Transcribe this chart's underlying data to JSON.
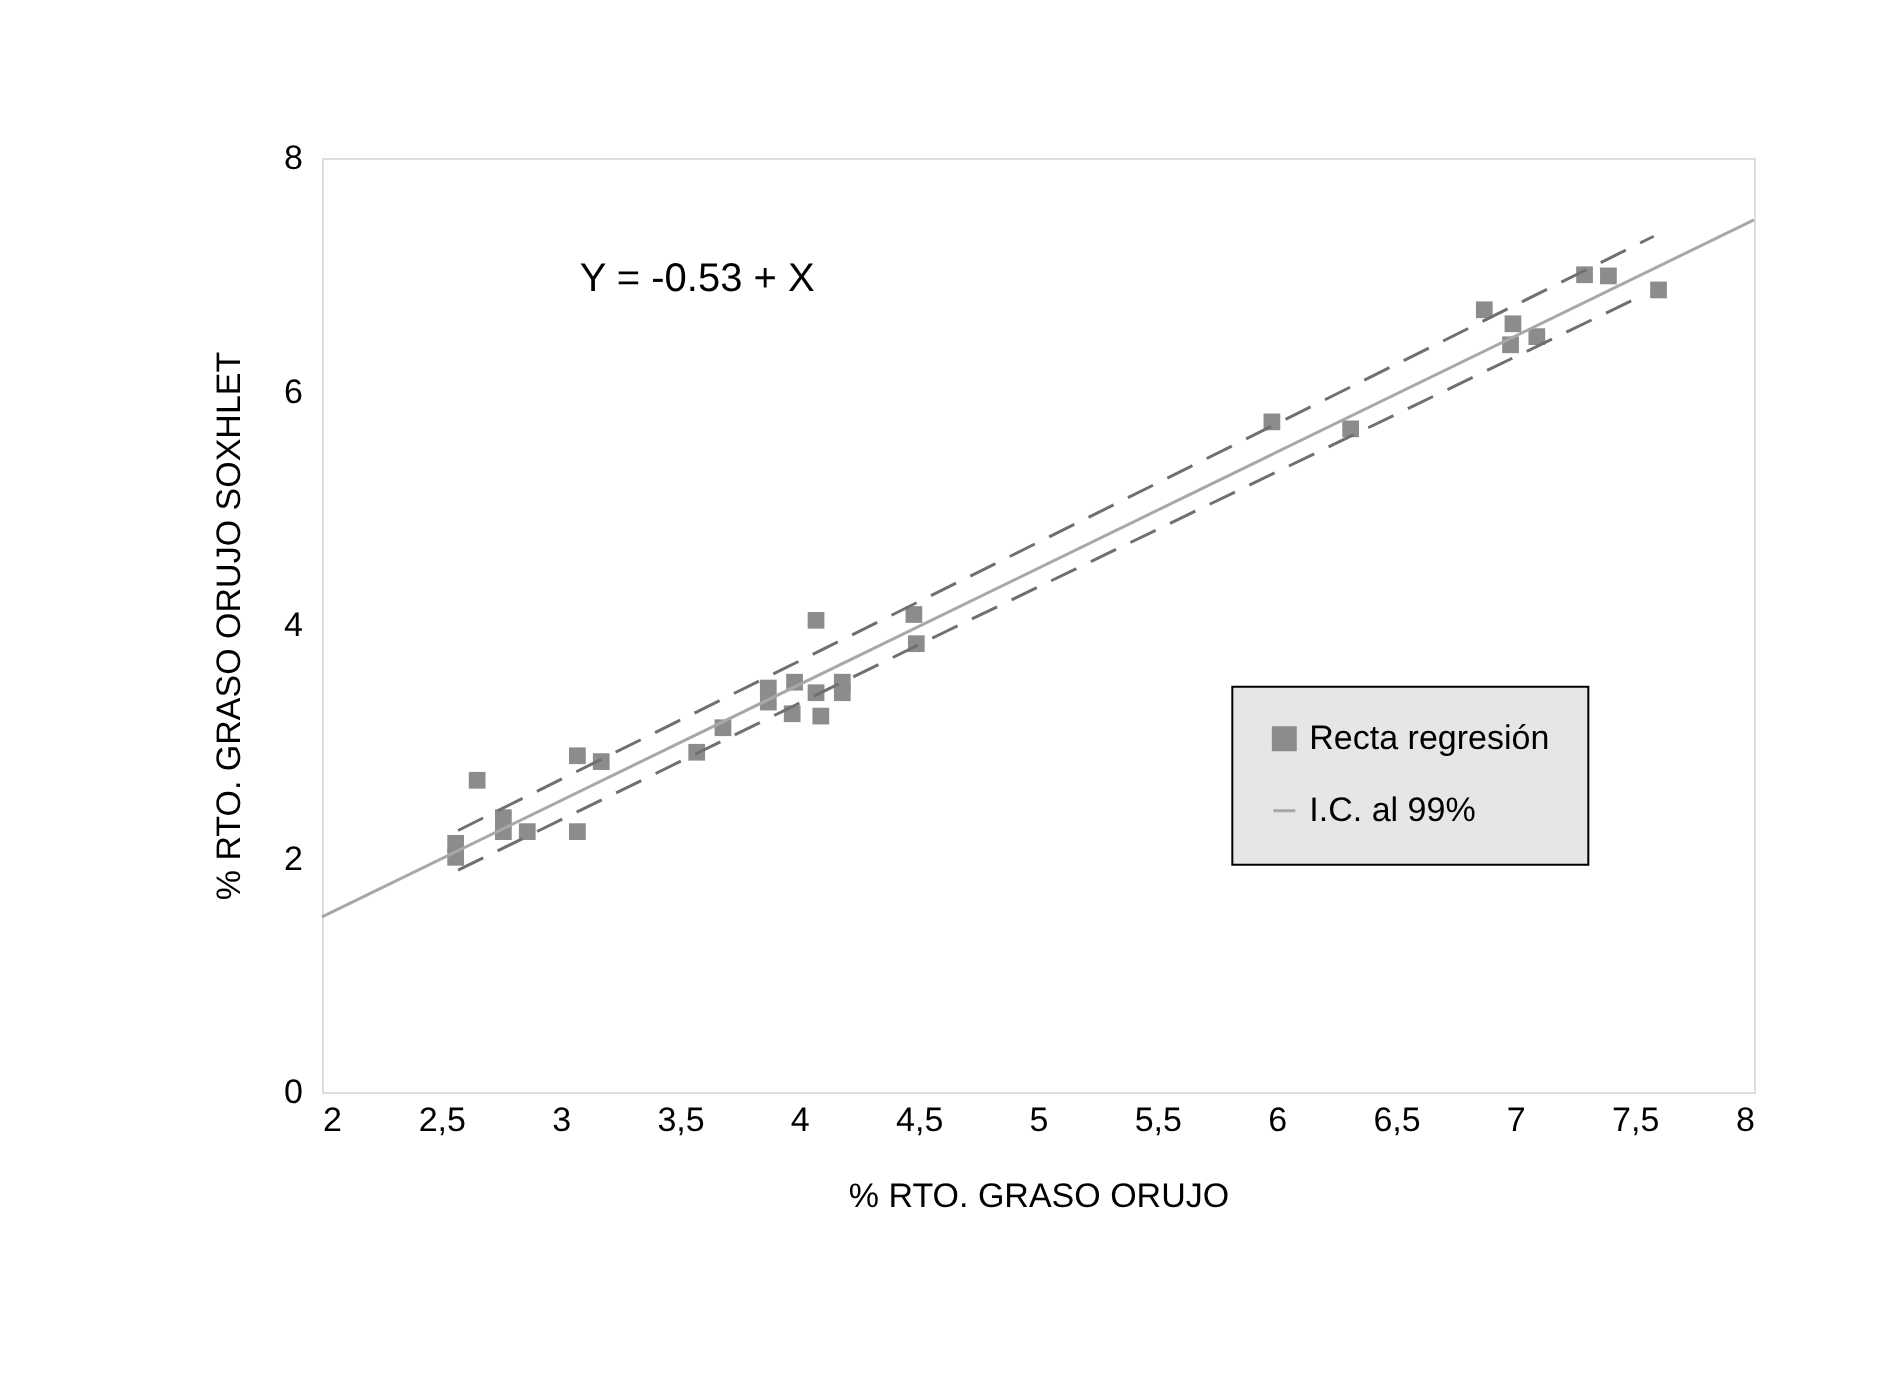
{
  "chart_data": {
    "type": "scatter",
    "xlabel": "% RTO. GRASO ORUJO",
    "ylabel": "% RTO. GRASO ORUJO SOXHLET",
    "annotations": [
      "Y = -0.53 + X"
    ],
    "xlim": [
      2,
      8
    ],
    "ylim": [
      0,
      8
    ],
    "xticks": [
      2,
      {
        "value": 2.5,
        "label": "2,5"
      },
      3,
      {
        "value": 3.5,
        "label": "3,5"
      },
      4,
      {
        "value": 4.5,
        "label": "4,5"
      },
      5,
      {
        "value": 5.5,
        "label": "5,5"
      },
      6,
      {
        "value": 6.5,
        "label": "6,5"
      },
      7,
      {
        "value": 7.5,
        "label": "7,5"
      },
      8
    ],
    "yticks": [
      0,
      2,
      4,
      6,
      8
    ],
    "grid": false,
    "legend": "right",
    "series": [
      {
        "name": "Recta regresión",
        "marker": "square",
        "color": "#8c8c8c",
        "x": [
          2.56,
          2.56,
          2.65,
          2.76,
          2.76,
          2.86,
          3.07,
          3.07,
          3.17,
          3.57,
          3.68,
          3.87,
          3.87,
          3.98,
          3.97,
          4.07,
          4.07,
          4.09,
          4.18,
          4.18,
          4.48,
          4.49,
          5.98,
          6.31,
          6.87,
          6.99,
          6.98,
          7.09,
          7.29,
          7.39,
          7.6
        ],
        "values": [
          2.13,
          2.01,
          2.67,
          2.35,
          2.23,
          2.23,
          2.88,
          2.23,
          2.83,
          2.91,
          3.12,
          3.46,
          3.34,
          3.51,
          3.24,
          4.04,
          3.42,
          3.22,
          3.51,
          3.42,
          4.09,
          3.84,
          5.74,
          5.68,
          6.7,
          6.58,
          6.4,
          6.47,
          7.0,
          6.99,
          6.87
        ]
      },
      {
        "name": "I.C. al 99%",
        "type": "line",
        "color": "#a8a8a8",
        "x": [
          2,
          8
        ],
        "values": [
          1.5,
          7.47
        ]
      },
      {
        "type": "line",
        "color": "#707070",
        "line_style": "dashed",
        "x": [
          2.57,
          4.56,
          7.58
        ],
        "values": [
          2.24,
          4.26,
          7.33
        ]
      },
      {
        "type": "line",
        "color": "#707070",
        "line_style": "dashed",
        "x": [
          2.57,
          4.61,
          7.54
        ],
        "values": [
          1.9,
          3.94,
          6.83
        ]
      }
    ]
  }
}
